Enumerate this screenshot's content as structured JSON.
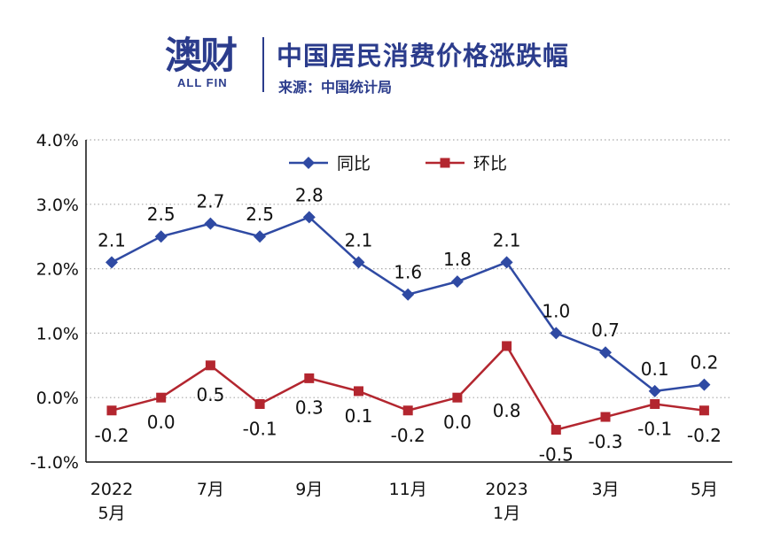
{
  "header": {
    "logo_text": "澳财",
    "logo_accent": "",
    "logo_sub": "ALL FIN",
    "title": "中国居民消费价格涨跌幅",
    "source": "来源：中国统计局"
  },
  "colors": {
    "brand": "#2b3c8c",
    "yoy": "#2f4aa3",
    "mom": "#b3262f",
    "grid": "#aaaaaa"
  },
  "chart_data": {
    "type": "line",
    "x": [
      "2022-05",
      "2022-06",
      "2022-07",
      "2022-08",
      "2022-09",
      "2022-10",
      "2022-11",
      "2022-12",
      "2023-01",
      "2023-02",
      "2023-03",
      "2023-04",
      "2023-05"
    ],
    "x_tick_labels": [
      {
        "index": 0,
        "lines": [
          "2022",
          "5月"
        ]
      },
      {
        "index": 2,
        "lines": [
          "7月"
        ]
      },
      {
        "index": 4,
        "lines": [
          "9月"
        ]
      },
      {
        "index": 6,
        "lines": [
          "11月"
        ]
      },
      {
        "index": 8,
        "lines": [
          "2023",
          "1月"
        ]
      },
      {
        "index": 10,
        "lines": [
          "3月"
        ]
      },
      {
        "index": 12,
        "lines": [
          "5月"
        ]
      }
    ],
    "y_tick_labels": [
      "-1.0%",
      "0.0%",
      "1.0%",
      "2.0%",
      "3.0%",
      "4.0%"
    ],
    "ylim": [
      -1.0,
      4.0
    ],
    "grid": "horizontal-dotted",
    "legend_position": "top-center",
    "series": [
      {
        "name": "同比",
        "marker": "diamond",
        "values": [
          2.1,
          2.5,
          2.7,
          2.5,
          2.8,
          2.1,
          1.6,
          1.8,
          2.1,
          1.0,
          0.7,
          0.1,
          0.2
        ],
        "labels": [
          "2.1",
          "2.5",
          "2.7",
          "2.5",
          "2.8",
          "2.1",
          "1.6",
          "1.8",
          "2.1",
          "1.0",
          "0.7",
          "0.1",
          "0.2"
        ]
      },
      {
        "name": "环比",
        "marker": "square",
        "values": [
          -0.2,
          0.0,
          0.5,
          -0.1,
          0.3,
          0.1,
          -0.2,
          0.0,
          0.8,
          -0.5,
          -0.3,
          -0.1,
          -0.2
        ],
        "labels": [
          "-0.2",
          "0.0",
          "0.5",
          "-0.1",
          "0.3",
          "0.1",
          "-0.2",
          "0.0",
          "0.8",
          "-0.5",
          "-0.3",
          "-0.1",
          "-0.2"
        ]
      }
    ]
  }
}
